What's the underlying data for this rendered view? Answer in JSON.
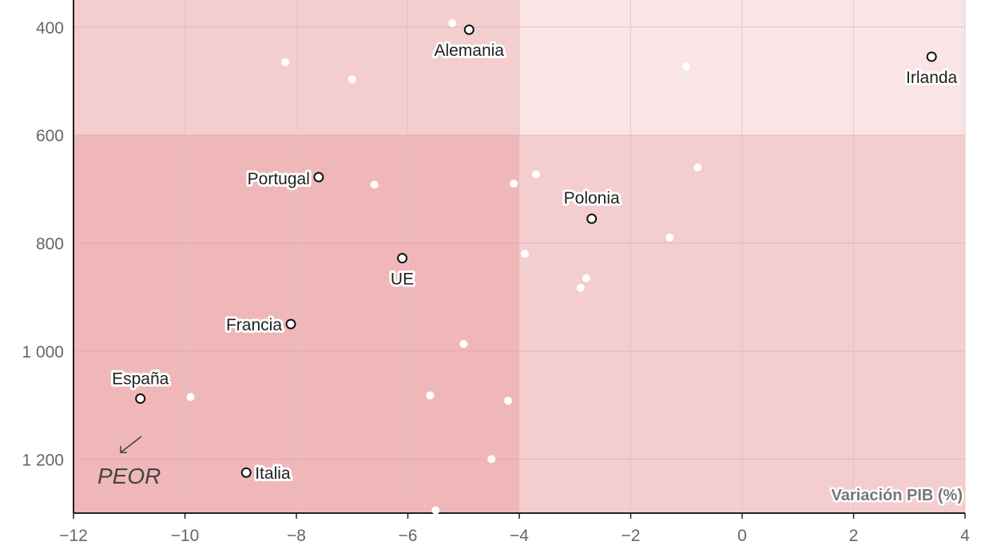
{
  "chart_data": {
    "type": "scatter",
    "xlabel": "Variación PIB (%)",
    "ylabel": "",
    "xlim": [
      -12,
      4
    ],
    "ylim": [
      1300,
      350
    ],
    "x_ticks": [
      -12,
      -10,
      -8,
      -6,
      -4,
      -2,
      0,
      2,
      4
    ],
    "x_tick_labels": [
      "−12",
      "−10",
      "−8",
      "−6",
      "−4",
      "−2",
      "0",
      "2",
      "4"
    ],
    "y_ticks": [
      400,
      600,
      800,
      1000,
      1200
    ],
    "y_tick_labels": [
      "400",
      "600",
      "800",
      "1 000",
      "1 200"
    ],
    "y_inverted": true,
    "grid": true,
    "quadrant_thresholds": {
      "x": -4,
      "y": 600
    },
    "quadrant_colors": {
      "top_left": "#f4cdcf",
      "top_right": "#f9e5e6",
      "bottom_left": "#f0b7b9",
      "bottom_right": "#f4cdcf"
    },
    "annotation": "PEOR",
    "labeled_points": [
      {
        "label": "Alemania",
        "x": -4.9,
        "y": 405
      },
      {
        "label": "Irlanda",
        "x": 3.4,
        "y": 455
      },
      {
        "label": "Portugal",
        "x": -7.6,
        "y": 678
      },
      {
        "label": "Polonia",
        "x": -2.7,
        "y": 755
      },
      {
        "label": "UE",
        "x": -6.1,
        "y": 828
      },
      {
        "label": "Francia",
        "x": -8.1,
        "y": 950
      },
      {
        "label": "España",
        "x": -10.8,
        "y": 1088
      },
      {
        "label": "Italia",
        "x": -8.9,
        "y": 1225
      }
    ],
    "other_points": [
      {
        "x": -5.2,
        "y": 393
      },
      {
        "x": -8.2,
        "y": 465
      },
      {
        "x": -7.0,
        "y": 497
      },
      {
        "x": -1.0,
        "y": 473
      },
      {
        "x": -3.7,
        "y": 673
      },
      {
        "x": -4.1,
        "y": 690
      },
      {
        "x": -6.6,
        "y": 692
      },
      {
        "x": -0.8,
        "y": 660
      },
      {
        "x": -1.3,
        "y": 790
      },
      {
        "x": -3.9,
        "y": 820
      },
      {
        "x": -2.8,
        "y": 865
      },
      {
        "x": -2.9,
        "y": 883
      },
      {
        "x": -5.0,
        "y": 987
      },
      {
        "x": -9.9,
        "y": 1085
      },
      {
        "x": -5.6,
        "y": 1082
      },
      {
        "x": -4.2,
        "y": 1092
      },
      {
        "x": -4.5,
        "y": 1200
      },
      {
        "x": -5.5,
        "y": 1295
      }
    ]
  }
}
